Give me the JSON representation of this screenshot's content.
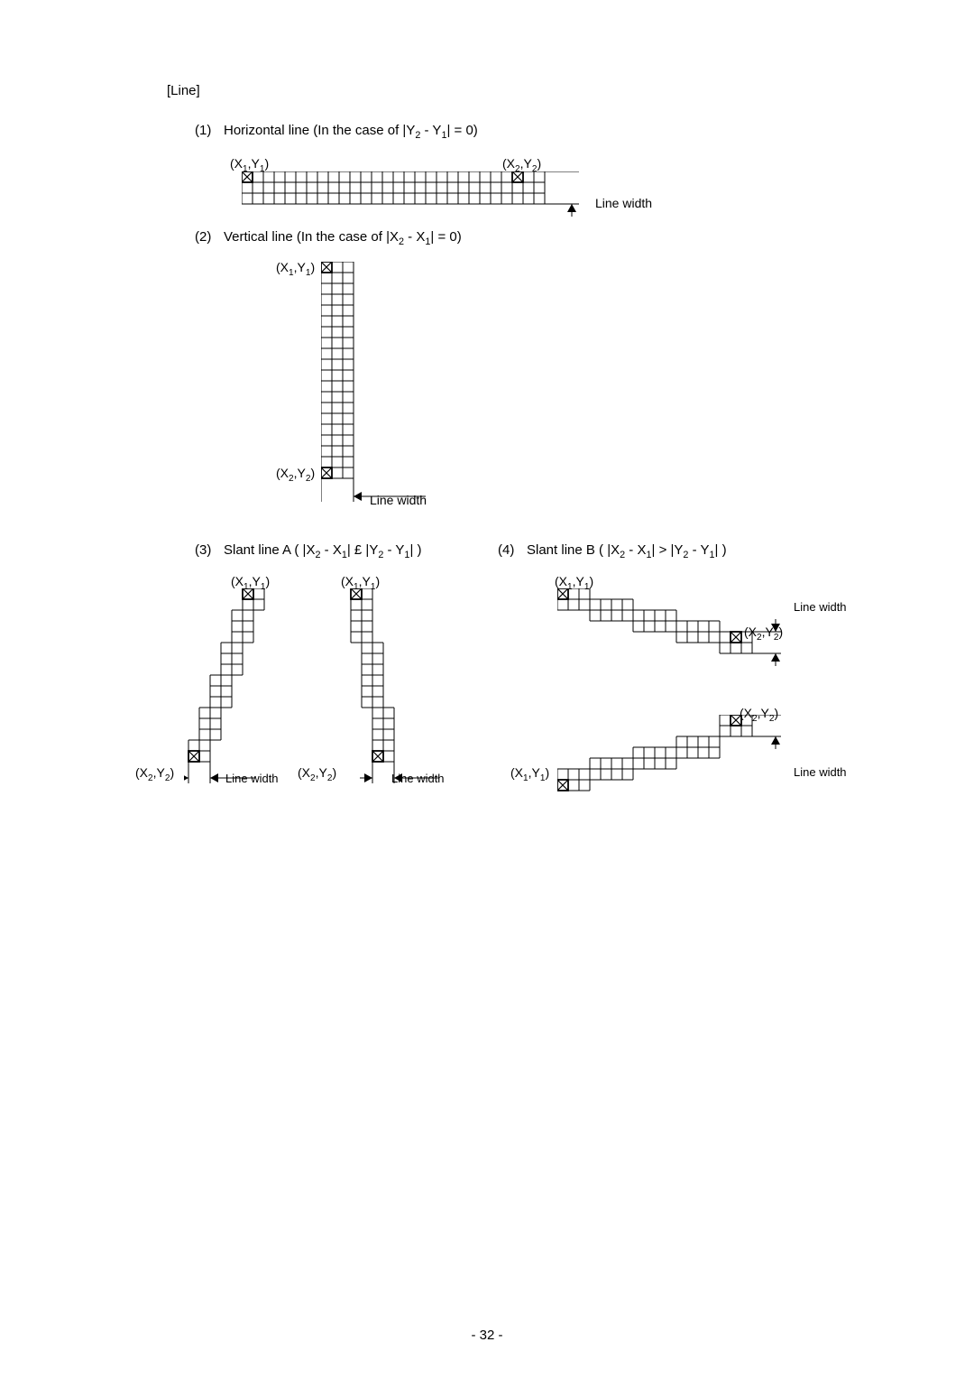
{
  "section_title": "[Line]",
  "page_number": "- 32 -",
  "cell": 12,
  "items": {
    "item1": {
      "num": "(1)",
      "text_parts": [
        "Horizontal line (In the case of |Y",
        "2",
        " - Y",
        "1",
        "| = 0)"
      ],
      "coord1_parts": [
        "(X",
        "1",
        ",Y",
        "1",
        ")"
      ],
      "coord2_parts": [
        "(X",
        "2",
        ",Y",
        "2",
        ")"
      ],
      "line_width": "Line width"
    },
    "item2": {
      "num": "(2)",
      "text_parts": [
        "Vertical line (In the case of |X",
        "2",
        " - X",
        "1",
        "| = 0)"
      ],
      "coord1_parts": [
        "(X",
        "1",
        ",Y",
        "1",
        ")"
      ],
      "coord2_parts": [
        "(X",
        "2",
        ",Y",
        "2",
        ")"
      ],
      "line_width": "Line width"
    },
    "item3": {
      "num": "(3)",
      "text_parts": [
        "Slant line A ( |X",
        "2",
        " - X",
        "1",
        "| £ |Y",
        "2",
        " - Y",
        "1",
        "| )"
      ],
      "coord1_parts": [
        "(X",
        "1",
        ",Y",
        "1",
        ")"
      ],
      "coord2_parts": [
        "(X",
        "2",
        ",Y",
        "2",
        ")"
      ],
      "line_width": "Line width"
    },
    "item4": {
      "num": "(4)",
      "text_parts": [
        "Slant line B ( |X",
        "2",
        " - X",
        "1",
        "| > |Y",
        "2",
        " - Y",
        "1",
        "| )"
      ],
      "coord1_parts": [
        "(X",
        "1",
        ",Y",
        "1",
        ")"
      ],
      "coord2_parts": [
        "(X",
        "2",
        ",Y",
        "2",
        ")"
      ],
      "line_width": "Line width"
    }
  },
  "colors": {
    "stroke": "#000000",
    "bg": "#ffffff"
  },
  "diagram1": {
    "cols": 28,
    "rows": 3,
    "crossed": [
      [
        0,
        0
      ],
      [
        25,
        0
      ]
    ]
  },
  "diagram2": {
    "cols": 3,
    "rows": 20,
    "crossed": [
      [
        0,
        0
      ],
      [
        0,
        19
      ]
    ]
  },
  "diagram3a": {
    "steps": [
      {
        "col": 5,
        "row": 0,
        "w": 2,
        "h": 2
      },
      {
        "col": 4,
        "row": 2,
        "w": 2,
        "h": 3
      },
      {
        "col": 3,
        "row": 5,
        "w": 2,
        "h": 3
      },
      {
        "col": 2,
        "row": 8,
        "w": 2,
        "h": 3
      },
      {
        "col": 1,
        "row": 11,
        "w": 2,
        "h": 3
      },
      {
        "col": 0,
        "row": 14,
        "w": 2,
        "h": 2
      }
    ],
    "crossed": [
      [
        5,
        0
      ],
      [
        0,
        15
      ]
    ]
  },
  "diagram3b": {
    "steps": [
      {
        "col": 0,
        "row": 0,
        "w": 2,
        "h": 2
      },
      {
        "col": 0,
        "row": 2,
        "w": 2,
        "h": 3
      },
      {
        "col": 1,
        "row": 5,
        "w": 2,
        "h": 3
      },
      {
        "col": 1,
        "row": 8,
        "w": 2,
        "h": 3
      },
      {
        "col": 2,
        "row": 11,
        "w": 2,
        "h": 3
      },
      {
        "col": 2,
        "row": 14,
        "w": 2,
        "h": 2
      }
    ],
    "crossed": [
      [
        0,
        0
      ],
      [
        2,
        15
      ]
    ]
  },
  "diagram4a": {
    "steps": [
      {
        "col": 0,
        "row": 0,
        "w": 3,
        "h": 2
      },
      {
        "col": 3,
        "row": 1,
        "w": 4,
        "h": 2
      },
      {
        "col": 7,
        "row": 2,
        "w": 4,
        "h": 2
      },
      {
        "col": 11,
        "row": 3,
        "w": 4,
        "h": 2
      },
      {
        "col": 15,
        "row": 4,
        "w": 3,
        "h": 2
      }
    ],
    "crossed": [
      [
        0,
        0
      ],
      [
        16,
        4
      ]
    ]
  },
  "diagram4b": {
    "steps": [
      {
        "col": 0,
        "row": 5,
        "w": 3,
        "h": 2
      },
      {
        "col": 3,
        "row": 4,
        "w": 4,
        "h": 2
      },
      {
        "col": 7,
        "row": 3,
        "w": 4,
        "h": 2
      },
      {
        "col": 11,
        "row": 2,
        "w": 4,
        "h": 2
      },
      {
        "col": 15,
        "row": 0,
        "w": 3,
        "h": 2
      }
    ],
    "crossed": [
      [
        0,
        6
      ],
      [
        16,
        0
      ]
    ]
  }
}
